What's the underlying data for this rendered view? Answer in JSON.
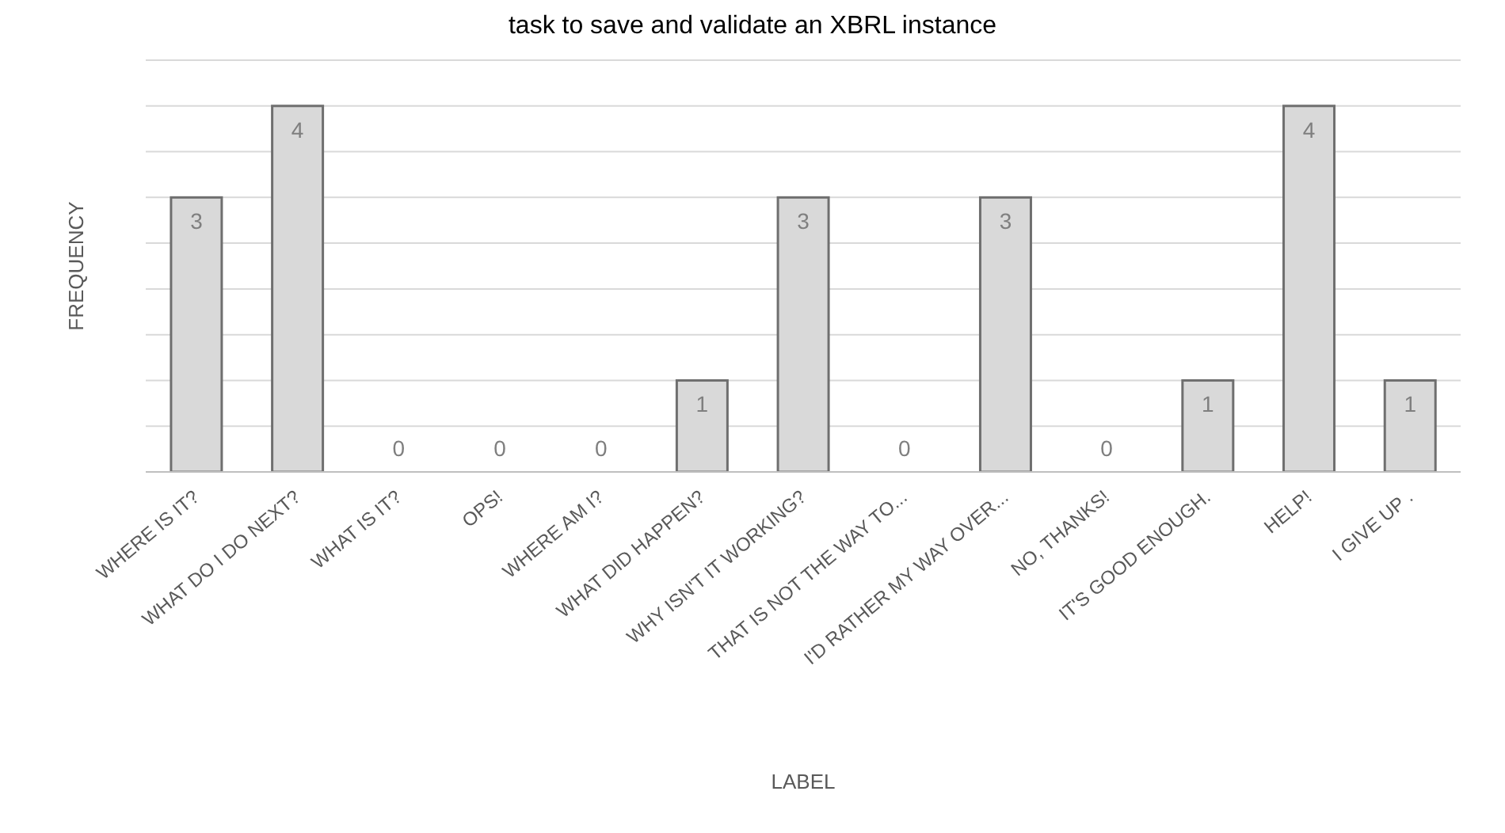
{
  "chart_data": {
    "type": "bar",
    "title": "task to save and validate an XBRL instance",
    "xlabel": "LABEL",
    "ylabel": "FREQUENCY",
    "categories": [
      "WHERE IS IT?",
      "WHAT DO I DO NEXT?",
      "WHAT IS IT?",
      "OPS!",
      "WHERE AM I?",
      "WHAT DID HAPPEN?",
      "WHY ISN'T IT WORKING?",
      "THAT IS NOT THE WAY TO...",
      "I'D RATHER MY WAY OVER...",
      "NO, THANKS!",
      "IT'S GOOD ENOUGH.",
      "HELP!",
      "I GIVE UP ."
    ],
    "values": [
      3,
      4,
      0,
      0,
      0,
      1,
      3,
      0,
      3,
      0,
      1,
      4,
      1
    ],
    "color": "#d9d9d9",
    "ylim": [
      0,
      4.5
    ],
    "yticks": [
      {
        "value": 0,
        "label": null
      },
      {
        "value": 0.5,
        "label": null
      },
      {
        "value": 1,
        "label": null
      },
      {
        "value": 1.5,
        "label": null
      },
      {
        "value": 2,
        "label": null
      },
      {
        "value": 2.5,
        "label": null
      },
      {
        "value": 3,
        "label": null
      },
      {
        "value": 3.5,
        "label": null
      },
      {
        "value": 4,
        "label": null
      },
      {
        "value": 4.5,
        "label": null
      }
    ],
    "tick_labels": "x",
    "grid": "y",
    "data_labels": true
  }
}
